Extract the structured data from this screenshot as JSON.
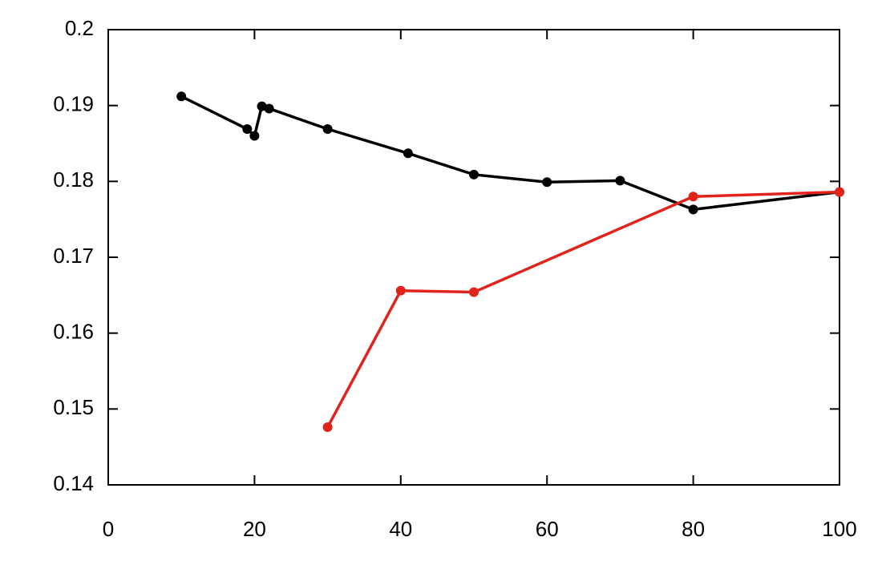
{
  "chart_data": {
    "type": "line",
    "series": [
      {
        "color": "#000000",
        "x": [
          10,
          19,
          20,
          21,
          22,
          30,
          41,
          50,
          60,
          70,
          80,
          100
        ],
        "values": [
          0.1912,
          0.1869,
          0.186,
          0.1899,
          0.1896,
          0.1869,
          0.1837,
          0.1809,
          0.1799,
          0.1801,
          0.1763,
          0.1786
        ]
      },
      {
        "color": "#e0241b",
        "x": [
          30,
          40,
          50,
          80,
          100
        ],
        "values": [
          0.1476,
          0.1656,
          0.1654,
          0.178,
          0.1786
        ]
      }
    ],
    "xlim": [
      0,
      100
    ],
    "xticks": [
      0,
      20,
      40,
      60,
      80,
      100
    ],
    "ylim": [
      0.14,
      0.2
    ],
    "yticks": [
      0.14,
      0.15,
      0.16,
      0.17,
      0.18,
      0.19,
      0.2
    ],
    "grid": false
  }
}
